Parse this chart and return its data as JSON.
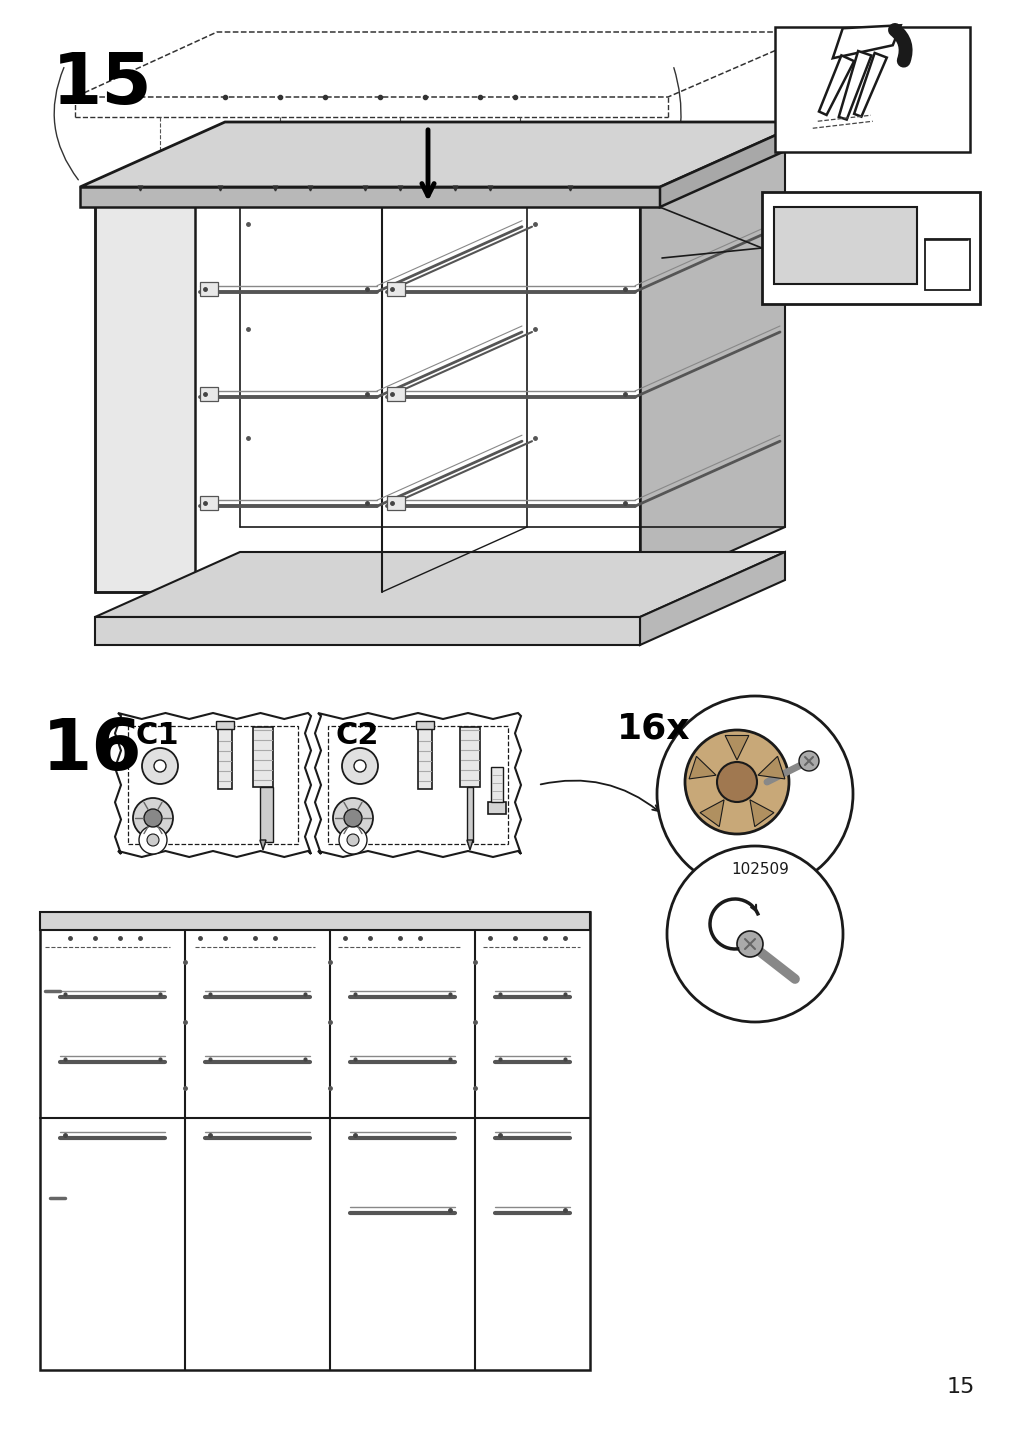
{
  "bg": "#ffffff",
  "lc": "#1a1a1a",
  "gray1": "#d4d4d4",
  "gray2": "#b8b8b8",
  "gray3": "#e8e8e8",
  "step15": "15",
  "step16": "16",
  "c1": "C1",
  "c2": "C2",
  "qty": "16x",
  "code": "102509",
  "pgnum": "15"
}
